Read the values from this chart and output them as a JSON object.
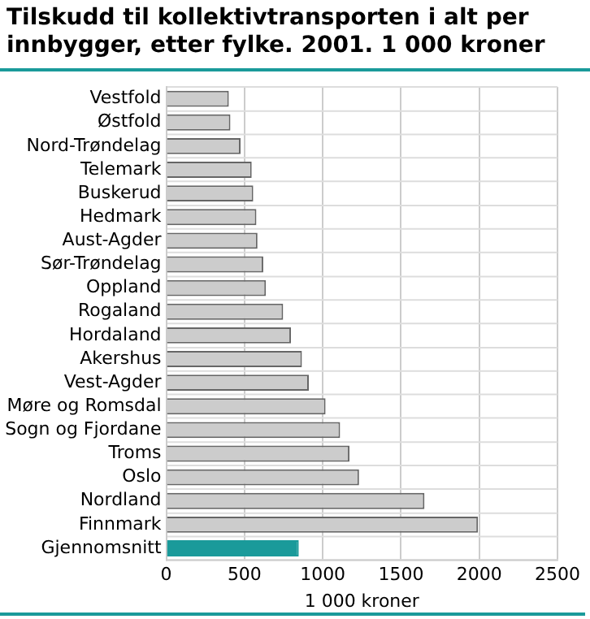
{
  "chart_data": {
    "type": "bar",
    "orientation": "horizontal",
    "title": "Tilskudd til kollektivtransporten i alt per innbygger, etter fylke. 2001. 1 000 kroner",
    "xlabel": "1 000 kroner",
    "categories": [
      "Vestfold",
      "Østfold",
      "Nord-Trøndelag",
      "Telemark",
      "Buskerud",
      "Hedmark",
      "Aust-Agder",
      "Sør-Trøndelag",
      "Oppland",
      "Rogaland",
      "Hordaland",
      "Akershus",
      "Vest-Agder",
      "Møre og Romsdal",
      "Sogn og Fjordane",
      "Troms",
      "Oslo",
      "Nordland",
      "Finnmark",
      "Gjennomsnitt"
    ],
    "values": [
      400,
      410,
      475,
      546,
      556,
      576,
      583,
      620,
      637,
      747,
      797,
      867,
      911,
      1018,
      1111,
      1171,
      1232,
      1650,
      1992,
      847
    ],
    "colors": [
      "#cccccc",
      "#cccccc",
      "#cccccc",
      "#cccccc",
      "#cccccc",
      "#cccccc",
      "#cccccc",
      "#cccccc",
      "#cccccc",
      "#cccccc",
      "#cccccc",
      "#cccccc",
      "#cccccc",
      "#cccccc",
      "#cccccc",
      "#cccccc",
      "#cccccc",
      "#cccccc",
      "#cccccc",
      "#1a9a9a"
    ],
    "xlim": [
      0,
      2500
    ],
    "xticks": [
      0,
      500,
      1000,
      1500,
      2000,
      2500
    ],
    "grid": true,
    "legend": false
  }
}
